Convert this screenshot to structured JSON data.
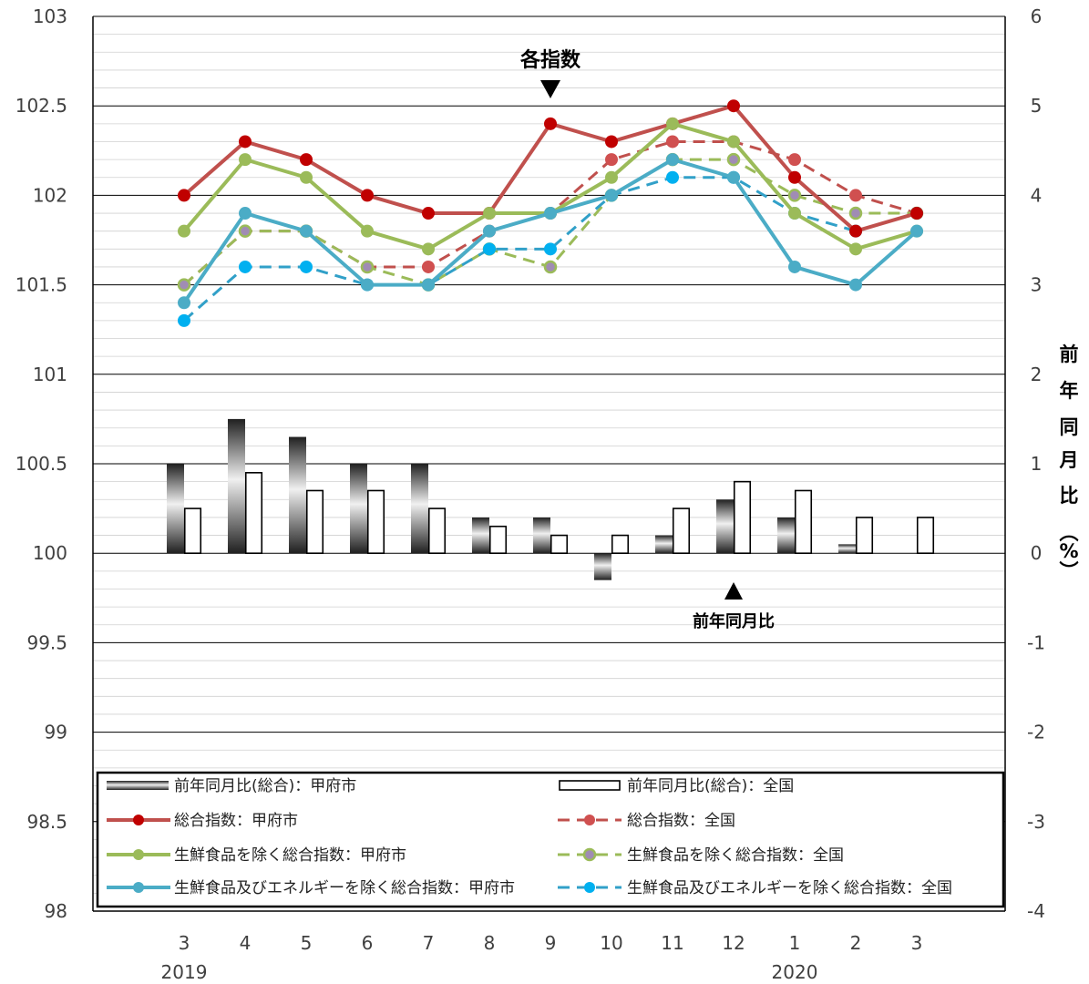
{
  "chart_data": {
    "type": "line+bar",
    "categories": [
      "3",
      "4",
      "5",
      "6",
      "7",
      "8",
      "9",
      "10",
      "11",
      "12",
      "1",
      "2",
      "3"
    ],
    "year_labels": [
      {
        "label": "2019",
        "at_index": 0
      },
      {
        "label": "2020",
        "at_index": 10
      }
    ],
    "y_left": {
      "min": 98,
      "max": 103,
      "ticks": [
        "98",
        "98.5",
        "99",
        "99.5",
        "100",
        "100.5",
        "101",
        "101.5",
        "102",
        "102.5",
        "103"
      ]
    },
    "y_right": {
      "min": -4,
      "max": 6,
      "ticks": [
        "-4",
        "-3",
        "-2",
        "-1",
        "0",
        "1",
        "2",
        "3",
        "4",
        "5",
        "6"
      ],
      "label": [
        "前",
        "年",
        "同",
        "月",
        "比",
        "︵",
        "%",
        "︶"
      ]
    },
    "grid": true,
    "bars": [
      {
        "name": "前年同月比(総合)：甲府市",
        "axis": "right",
        "style": "gradient",
        "values": [
          1.0,
          1.5,
          1.3,
          1.0,
          1.0,
          0.4,
          0.4,
          -0.3,
          0.2,
          0.6,
          0.4,
          0.1,
          null
        ]
      },
      {
        "name": "前年同月比(総合)：全国",
        "axis": "right",
        "style": "outline",
        "values": [
          0.5,
          0.9,
          0.7,
          0.7,
          0.5,
          0.3,
          0.2,
          0.2,
          0.5,
          0.8,
          0.7,
          0.4,
          0.4
        ]
      }
    ],
    "series": [
      {
        "name": "総合指数：甲府市",
        "axis": "left",
        "color": "#c0504d",
        "dashed": false,
        "marker": "#c00000",
        "values": [
          102.0,
          102.3,
          102.2,
          102.0,
          101.9,
          101.9,
          102.4,
          102.3,
          102.4,
          102.5,
          102.1,
          101.8,
          101.9
        ]
      },
      {
        "name": "総合指数：全国",
        "axis": "left",
        "color": "#c0504d",
        "dashed": true,
        "marker": "#d05050",
        "values": [
          101.5,
          101.8,
          101.8,
          101.6,
          101.6,
          101.8,
          101.9,
          102.2,
          102.3,
          102.3,
          102.2,
          102.0,
          101.9
        ]
      },
      {
        "name": "生鮮食品を除く総合指数：甲府市",
        "axis": "left",
        "color": "#9bbb59",
        "dashed": false,
        "marker": "#9bbb59",
        "values": [
          101.8,
          102.2,
          102.1,
          101.8,
          101.7,
          101.9,
          101.9,
          102.1,
          102.4,
          102.3,
          101.9,
          101.7,
          101.8
        ]
      },
      {
        "name": "生鮮食品を除く総合指数：全国",
        "axis": "left",
        "color": "#9bbb59",
        "dashed": true,
        "marker": "#a08cb4",
        "values": [
          101.5,
          101.8,
          101.8,
          101.6,
          101.5,
          101.7,
          101.6,
          102.0,
          102.2,
          102.2,
          102.0,
          101.9,
          101.9
        ]
      },
      {
        "name": "生鮮食品及びエネルギーを除く総合指数：甲府市",
        "axis": "left",
        "color": "#4bacc6",
        "dashed": false,
        "marker": "#4bacc6",
        "values": [
          101.4,
          101.9,
          101.8,
          101.5,
          101.5,
          101.8,
          101.9,
          102.0,
          102.2,
          102.1,
          101.6,
          101.5,
          101.8
        ]
      },
      {
        "name": "生鮮食品及びエネルギーを除く総合指数：全国",
        "axis": "left",
        "color": "#31a0c8",
        "dashed": true,
        "marker": "#00b0f0",
        "values": [
          101.3,
          101.6,
          101.6,
          101.5,
          101.5,
          101.7,
          101.7,
          102.0,
          102.1,
          102.1,
          101.9,
          101.8,
          101.9
        ]
      }
    ],
    "annotations": [
      {
        "text": "各指数",
        "arrow": "down",
        "at_index": 6,
        "y_value": 102.5
      },
      {
        "text": "前年同月比",
        "arrow": "up",
        "at_index": 9,
        "y_value": 99.9
      }
    ],
    "legend_position": "bottom-inside"
  }
}
